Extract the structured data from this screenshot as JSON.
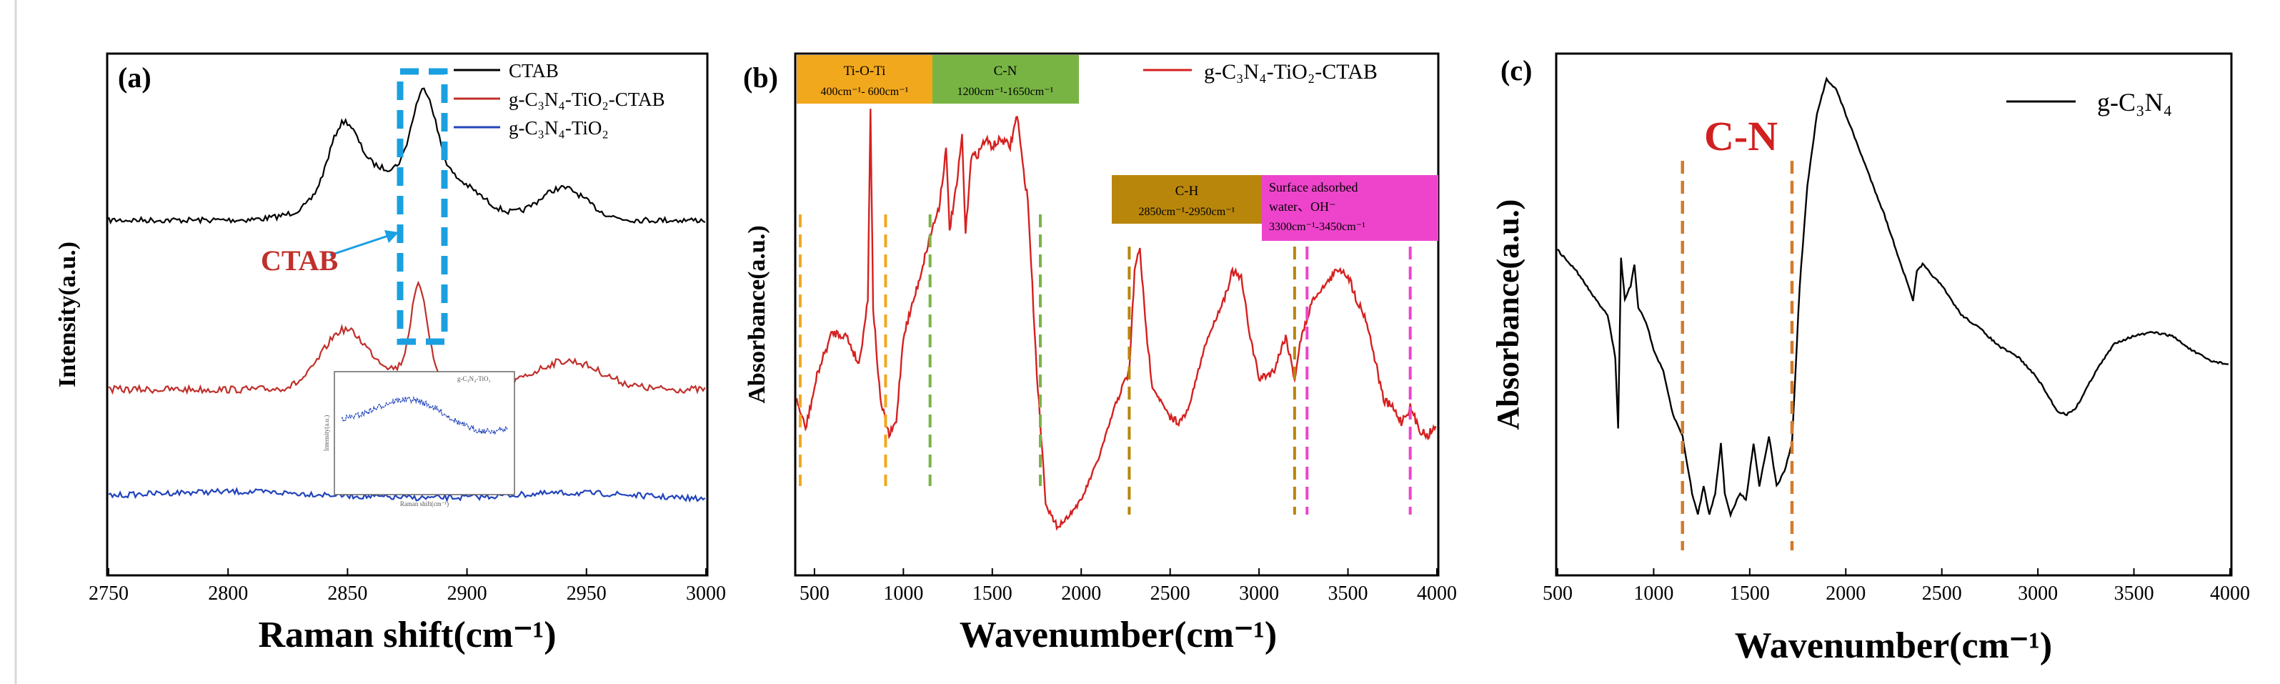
{
  "chart_data": [
    {
      "panel": "(a)",
      "type": "line",
      "xlabel": "Raman shift(cm⁻¹)",
      "ylabel": "Intensity(a.u.)",
      "xlim": [
        2750,
        3000
      ],
      "x_ticks": [
        "2750",
        "2800",
        "2850",
        "2900",
        "2950",
        "3000"
      ],
      "legend": [
        {
          "label": "CTAB",
          "color": "#000000"
        },
        {
          "label": "g-C₃N₄-TiO₂-CTAB",
          "color": "#c0302b"
        },
        {
          "label": "g-C₃N₄-TiO₂",
          "color": "#2244bb"
        }
      ],
      "annotation": "CTAB",
      "inset": {
        "legend": "g-C₃N₄-TiO₂",
        "xlabel": "Raman shift(cm⁻¹)",
        "ylabel": "Intensity(a.u.)"
      },
      "highlight_range": [
        2875,
        2892
      ]
    },
    {
      "panel": "(b)",
      "type": "line",
      "xlabel": "Wavenumber(cm⁻¹)",
      "ylabel": "Absorbance(a.u.)",
      "xlim": [
        400,
        4000
      ],
      "x_ticks": [
        "500",
        "1000",
        "1500",
        "2000",
        "2500",
        "3000",
        "3500",
        "4000"
      ],
      "legend": [
        {
          "label": "g-C₃N₄-TiO₂-CTAB",
          "color": "#d62020"
        }
      ],
      "bands": [
        {
          "title": "Ti-O-Ti",
          "range": "400cm⁻¹- 600cm⁻¹",
          "color": "#f2a81d",
          "lines": [
            420,
            900
          ]
        },
        {
          "title": "C-N",
          "range": "1200cm⁻¹-1650cm⁻¹",
          "color": "#78b444",
          "lines": [
            1150,
            1770
          ]
        },
        {
          "title": "C-H",
          "range": "2850cm⁻¹-2950cm⁻¹",
          "color": "#b8860b",
          "lines": [
            2270,
            3200
          ]
        },
        {
          "title": "Surface adsorbed",
          "title2": "water、OH⁻",
          "range": "3300cm⁻¹-3450cm⁻¹",
          "color": "#ee44cc",
          "lines": [
            3270,
            3850
          ]
        }
      ]
    },
    {
      "panel": "(c)",
      "type": "line",
      "xlabel": "Wavenumber(cm⁻¹)",
      "ylabel": "Absorbance(a.u.)",
      "xlim": [
        500,
        4000
      ],
      "x_ticks": [
        "500",
        "1000",
        "1500",
        "2000",
        "2500",
        "3000",
        "3500",
        "4000"
      ],
      "legend": [
        {
          "label": "g-C₃N₄",
          "color": "#000000"
        }
      ],
      "annotation": "C-N",
      "annotation_lines": [
        1150,
        1720
      ]
    }
  ]
}
